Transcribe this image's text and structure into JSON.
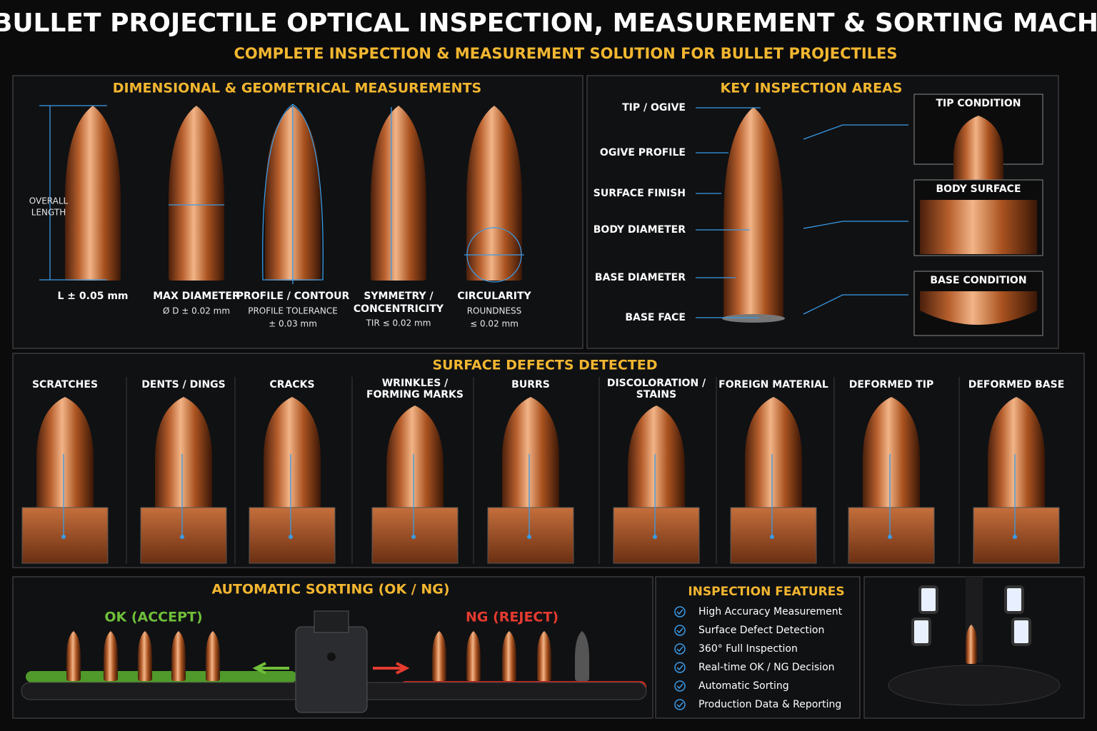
{
  "header": {
    "title": "BULLET PROJECTILE OPTICAL INSPECTION, MEASUREMENT & SORTING MACHINE",
    "subtitle": "COMPLETE INSPECTION & MEASUREMENT SOLUTION FOR BULLET PROJECTILES"
  },
  "dimensional": {
    "title": "DIMENSIONAL & GEOMETRICAL MEASUREMENTS",
    "overall_length": [
      "OVERALL",
      "LENGTH"
    ],
    "items": [
      {
        "lines": [
          "L ± 0.05 mm"
        ]
      },
      {
        "lines": [
          "MAX DIAMETER",
          "Ø D ± 0.02 mm"
        ]
      },
      {
        "lines": [
          "PROFILE / CONTOUR",
          "PROFILE TOLERANCE",
          "± 0.03 mm"
        ]
      },
      {
        "lines": [
          "SYMMETRY /",
          "CONCENTRICITY",
          "TIR ≤ 0.02 mm"
        ]
      },
      {
        "lines": [
          "CIRCULARITY",
          "ROUNDNESS",
          "≤ 0.02 mm"
        ]
      }
    ]
  },
  "key_areas": {
    "title": "KEY INSPECTION AREAS",
    "labels": [
      "TIP / OGIVE",
      "OGIVE PROFILE",
      "SURFACE FINISH",
      "BODY DIAMETER",
      "BASE DIAMETER",
      "BASE FACE"
    ],
    "insets": [
      "TIP CONDITION",
      "BODY SURFACE",
      "BASE CONDITION"
    ]
  },
  "defects": {
    "title": "SURFACE DEFECTS DETECTED",
    "items": [
      [
        "SCRATCHES"
      ],
      [
        "DENTS / DINGS"
      ],
      [
        "CRACKS"
      ],
      [
        "WRINKLES /",
        "FORMING MARKS"
      ],
      [
        "BURRS"
      ],
      [
        "DISCOLORATION /",
        "STAINS"
      ],
      [
        "FOREIGN MATERIAL"
      ],
      [
        "DEFORMED TIP"
      ],
      [
        "DEFORMED BASE"
      ]
    ]
  },
  "sorting": {
    "title": "AUTOMATIC SORTING (OK / NG)",
    "ok": "OK (ACCEPT)",
    "ng": "NG (REJECT)"
  },
  "features": {
    "title": "INSPECTION FEATURES",
    "items": [
      "High Accuracy Measurement",
      "Surface Defect Detection",
      "360° Full Inspection",
      "Real-time OK / NG Decision",
      "Automatic Sorting",
      "Production Data & Reporting"
    ]
  }
}
